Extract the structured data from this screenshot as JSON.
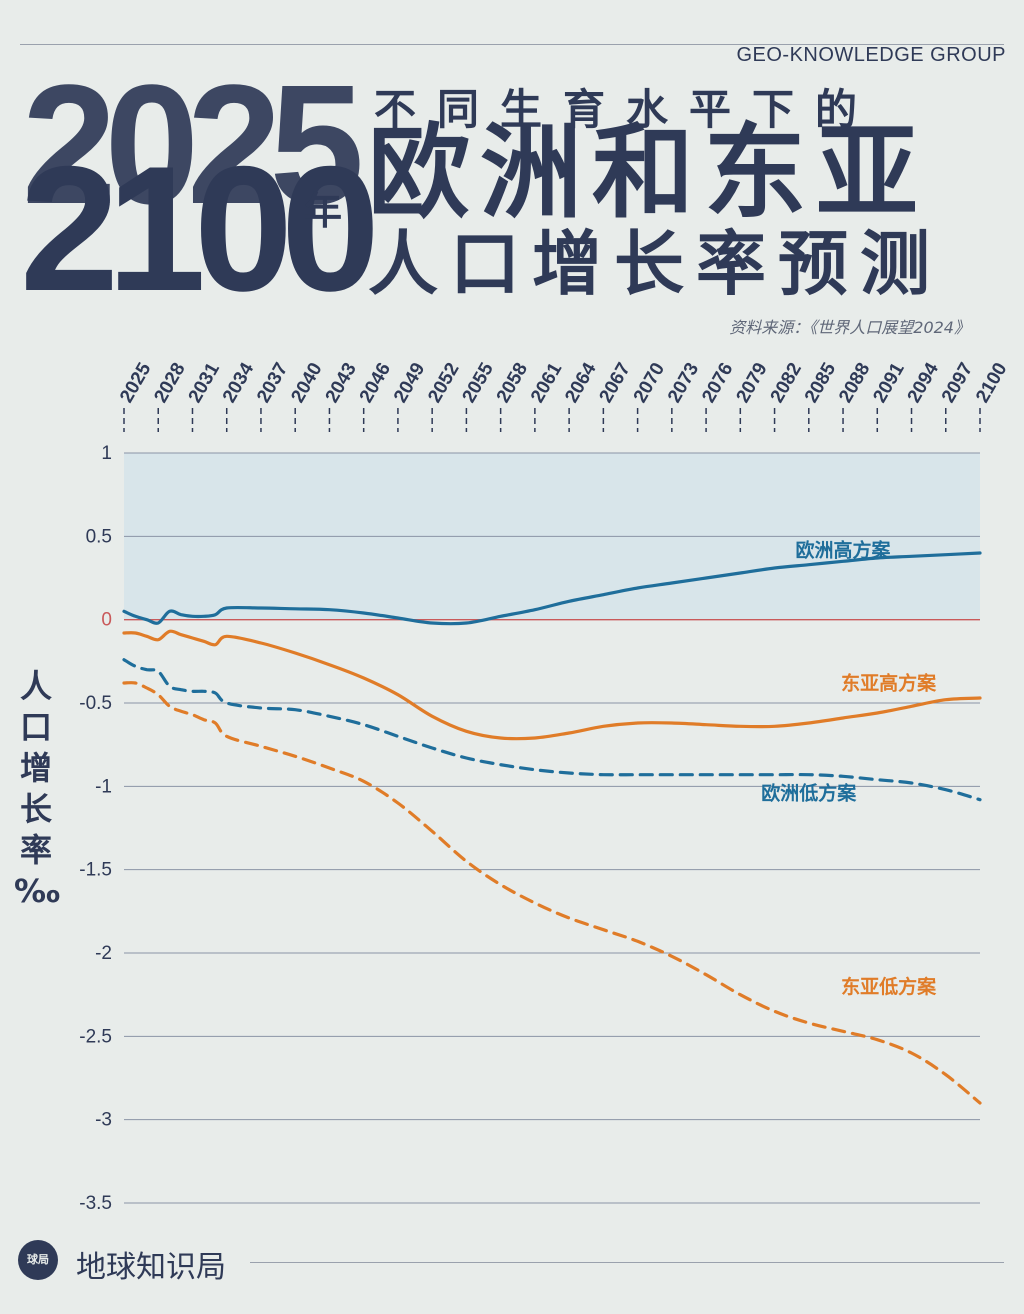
{
  "header": {
    "brand": "GEO-KNOWLEDGE GROUP",
    "year_start": "2025",
    "year_end": "2100",
    "year_unit": "年",
    "subtitle": "不同生育水平下的",
    "title_main": "欧洲和东亚",
    "title_sub": "人口增长率预测",
    "source": "资料来源：《世界人口展望2024》"
  },
  "y_axis_label": [
    "人",
    "口",
    "增",
    "长",
    "率",
    "‰"
  ],
  "footer": {
    "logo_text": "球局",
    "name": "地球知识局"
  },
  "colors": {
    "europe": "#1f6e9b",
    "east_asia": "#e07c28",
    "zero_line": "#c9595a",
    "grid": "#8a94a6",
    "shade": "#d3e3ea",
    "text": "#2f3a57"
  },
  "chart_data": {
    "type": "line",
    "title": "",
    "xlabel": "",
    "ylabel": "人口增长率‰",
    "x_tick_labels": [
      "2025",
      "2028",
      "2031",
      "2034",
      "2037",
      "2040",
      "2043",
      "2046",
      "2049",
      "2052",
      "2055",
      "2058",
      "2061",
      "2064",
      "2067",
      "2070",
      "2073",
      "2076",
      "2079",
      "2082",
      "2085",
      "2088",
      "2091",
      "2094",
      "2097",
      "2100"
    ],
    "xlim": [
      2025,
      2100
    ],
    "y_ticks": [
      1,
      0.5,
      0,
      -0.5,
      -1,
      -1.5,
      -2,
      -2.5,
      -3,
      -3.5
    ],
    "ylim": [
      -3.5,
      1
    ],
    "grid": true,
    "series": [
      {
        "name": "欧洲高方案",
        "line": "solid",
        "color": "#1f6e9b",
        "points": [
          [
            2025,
            0.05
          ],
          [
            2026,
            0.02
          ],
          [
            2027,
            0.0
          ],
          [
            2028,
            -0.02
          ],
          [
            2029,
            0.05
          ],
          [
            2030,
            0.03
          ],
          [
            2031,
            0.02
          ],
          [
            2032,
            0.02
          ],
          [
            2033,
            0.03
          ],
          [
            2034,
            0.07
          ],
          [
            2037,
            0.07
          ],
          [
            2040,
            0.065
          ],
          [
            2043,
            0.06
          ],
          [
            2046,
            0.04
          ],
          [
            2049,
            0.01
          ],
          [
            2052,
            -0.02
          ],
          [
            2055,
            -0.02
          ],
          [
            2058,
            0.02
          ],
          [
            2061,
            0.06
          ],
          [
            2064,
            0.11
          ],
          [
            2067,
            0.15
          ],
          [
            2070,
            0.19
          ],
          [
            2073,
            0.22
          ],
          [
            2076,
            0.25
          ],
          [
            2079,
            0.28
          ],
          [
            2082,
            0.31
          ],
          [
            2085,
            0.33
          ],
          [
            2088,
            0.35
          ],
          [
            2091,
            0.37
          ],
          [
            2094,
            0.38
          ],
          [
            2097,
            0.39
          ],
          [
            2100,
            0.4
          ]
        ]
      },
      {
        "name": "东亚高方案",
        "line": "solid",
        "color": "#e07c28",
        "points": [
          [
            2025,
            -0.08
          ],
          [
            2026,
            -0.08
          ],
          [
            2027,
            -0.1
          ],
          [
            2028,
            -0.12
          ],
          [
            2029,
            -0.07
          ],
          [
            2030,
            -0.09
          ],
          [
            2031,
            -0.11
          ],
          [
            2032,
            -0.13
          ],
          [
            2033,
            -0.15
          ],
          [
            2034,
            -0.1
          ],
          [
            2037,
            -0.14
          ],
          [
            2040,
            -0.2
          ],
          [
            2043,
            -0.27
          ],
          [
            2046,
            -0.35
          ],
          [
            2049,
            -0.45
          ],
          [
            2052,
            -0.58
          ],
          [
            2055,
            -0.67
          ],
          [
            2058,
            -0.71
          ],
          [
            2061,
            -0.71
          ],
          [
            2064,
            -0.68
          ],
          [
            2067,
            -0.64
          ],
          [
            2070,
            -0.62
          ],
          [
            2073,
            -0.62
          ],
          [
            2076,
            -0.63
          ],
          [
            2079,
            -0.64
          ],
          [
            2082,
            -0.64
          ],
          [
            2085,
            -0.62
          ],
          [
            2088,
            -0.59
          ],
          [
            2091,
            -0.56
          ],
          [
            2094,
            -0.52
          ],
          [
            2097,
            -0.48
          ],
          [
            2100,
            -0.47
          ]
        ]
      },
      {
        "name": "欧洲低方案",
        "line": "dashed",
        "color": "#1f6e9b",
        "points": [
          [
            2025,
            -0.24
          ],
          [
            2026,
            -0.28
          ],
          [
            2027,
            -0.3
          ],
          [
            2028,
            -0.31
          ],
          [
            2029,
            -0.4
          ],
          [
            2030,
            -0.42
          ],
          [
            2031,
            -0.43
          ],
          [
            2032,
            -0.43
          ],
          [
            2033,
            -0.44
          ],
          [
            2034,
            -0.5
          ],
          [
            2037,
            -0.53
          ],
          [
            2040,
            -0.54
          ],
          [
            2043,
            -0.58
          ],
          [
            2046,
            -0.63
          ],
          [
            2049,
            -0.7
          ],
          [
            2052,
            -0.77
          ],
          [
            2055,
            -0.83
          ],
          [
            2058,
            -0.87
          ],
          [
            2061,
            -0.9
          ],
          [
            2064,
            -0.92
          ],
          [
            2067,
            -0.93
          ],
          [
            2070,
            -0.93
          ],
          [
            2073,
            -0.93
          ],
          [
            2076,
            -0.93
          ],
          [
            2079,
            -0.93
          ],
          [
            2082,
            -0.93
          ],
          [
            2085,
            -0.93
          ],
          [
            2088,
            -0.94
          ],
          [
            2091,
            -0.96
          ],
          [
            2094,
            -0.98
          ],
          [
            2097,
            -1.02
          ],
          [
            2100,
            -1.08
          ]
        ]
      },
      {
        "name": "东亚低方案",
        "line": "dashed",
        "color": "#e07c28",
        "points": [
          [
            2025,
            -0.38
          ],
          [
            2026,
            -0.38
          ],
          [
            2027,
            -0.41
          ],
          [
            2028,
            -0.45
          ],
          [
            2029,
            -0.52
          ],
          [
            2030,
            -0.55
          ],
          [
            2031,
            -0.57
          ],
          [
            2032,
            -0.6
          ],
          [
            2033,
            -0.62
          ],
          [
            2034,
            -0.7
          ],
          [
            2037,
            -0.76
          ],
          [
            2040,
            -0.82
          ],
          [
            2043,
            -0.89
          ],
          [
            2046,
            -0.97
          ],
          [
            2049,
            -1.1
          ],
          [
            2052,
            -1.27
          ],
          [
            2055,
            -1.45
          ],
          [
            2058,
            -1.59
          ],
          [
            2061,
            -1.7
          ],
          [
            2064,
            -1.79
          ],
          [
            2067,
            -1.86
          ],
          [
            2070,
            -1.93
          ],
          [
            2073,
            -2.02
          ],
          [
            2076,
            -2.13
          ],
          [
            2079,
            -2.25
          ],
          [
            2082,
            -2.35
          ],
          [
            2085,
            -2.42
          ],
          [
            2088,
            -2.47
          ],
          [
            2091,
            -2.52
          ],
          [
            2094,
            -2.6
          ],
          [
            2097,
            -2.73
          ],
          [
            2100,
            -2.9
          ]
        ]
      }
    ],
    "annotations": [
      {
        "text": "欧洲高方案",
        "series": "欧洲高方案",
        "x": 2088,
        "y": 0.38,
        "color": "#1f6e9b"
      },
      {
        "text": "东亚高方案",
        "series": "东亚高方案",
        "x": 2092,
        "y": -0.42,
        "color": "#e07c28"
      },
      {
        "text": "欧洲低方案",
        "series": "欧洲低方案",
        "x": 2085,
        "y": -1.08,
        "color": "#1f6e9b"
      },
      {
        "text": "东亚低方案",
        "series": "东亚低方案",
        "x": 2092,
        "y": -2.24,
        "color": "#e07c28"
      }
    ]
  }
}
